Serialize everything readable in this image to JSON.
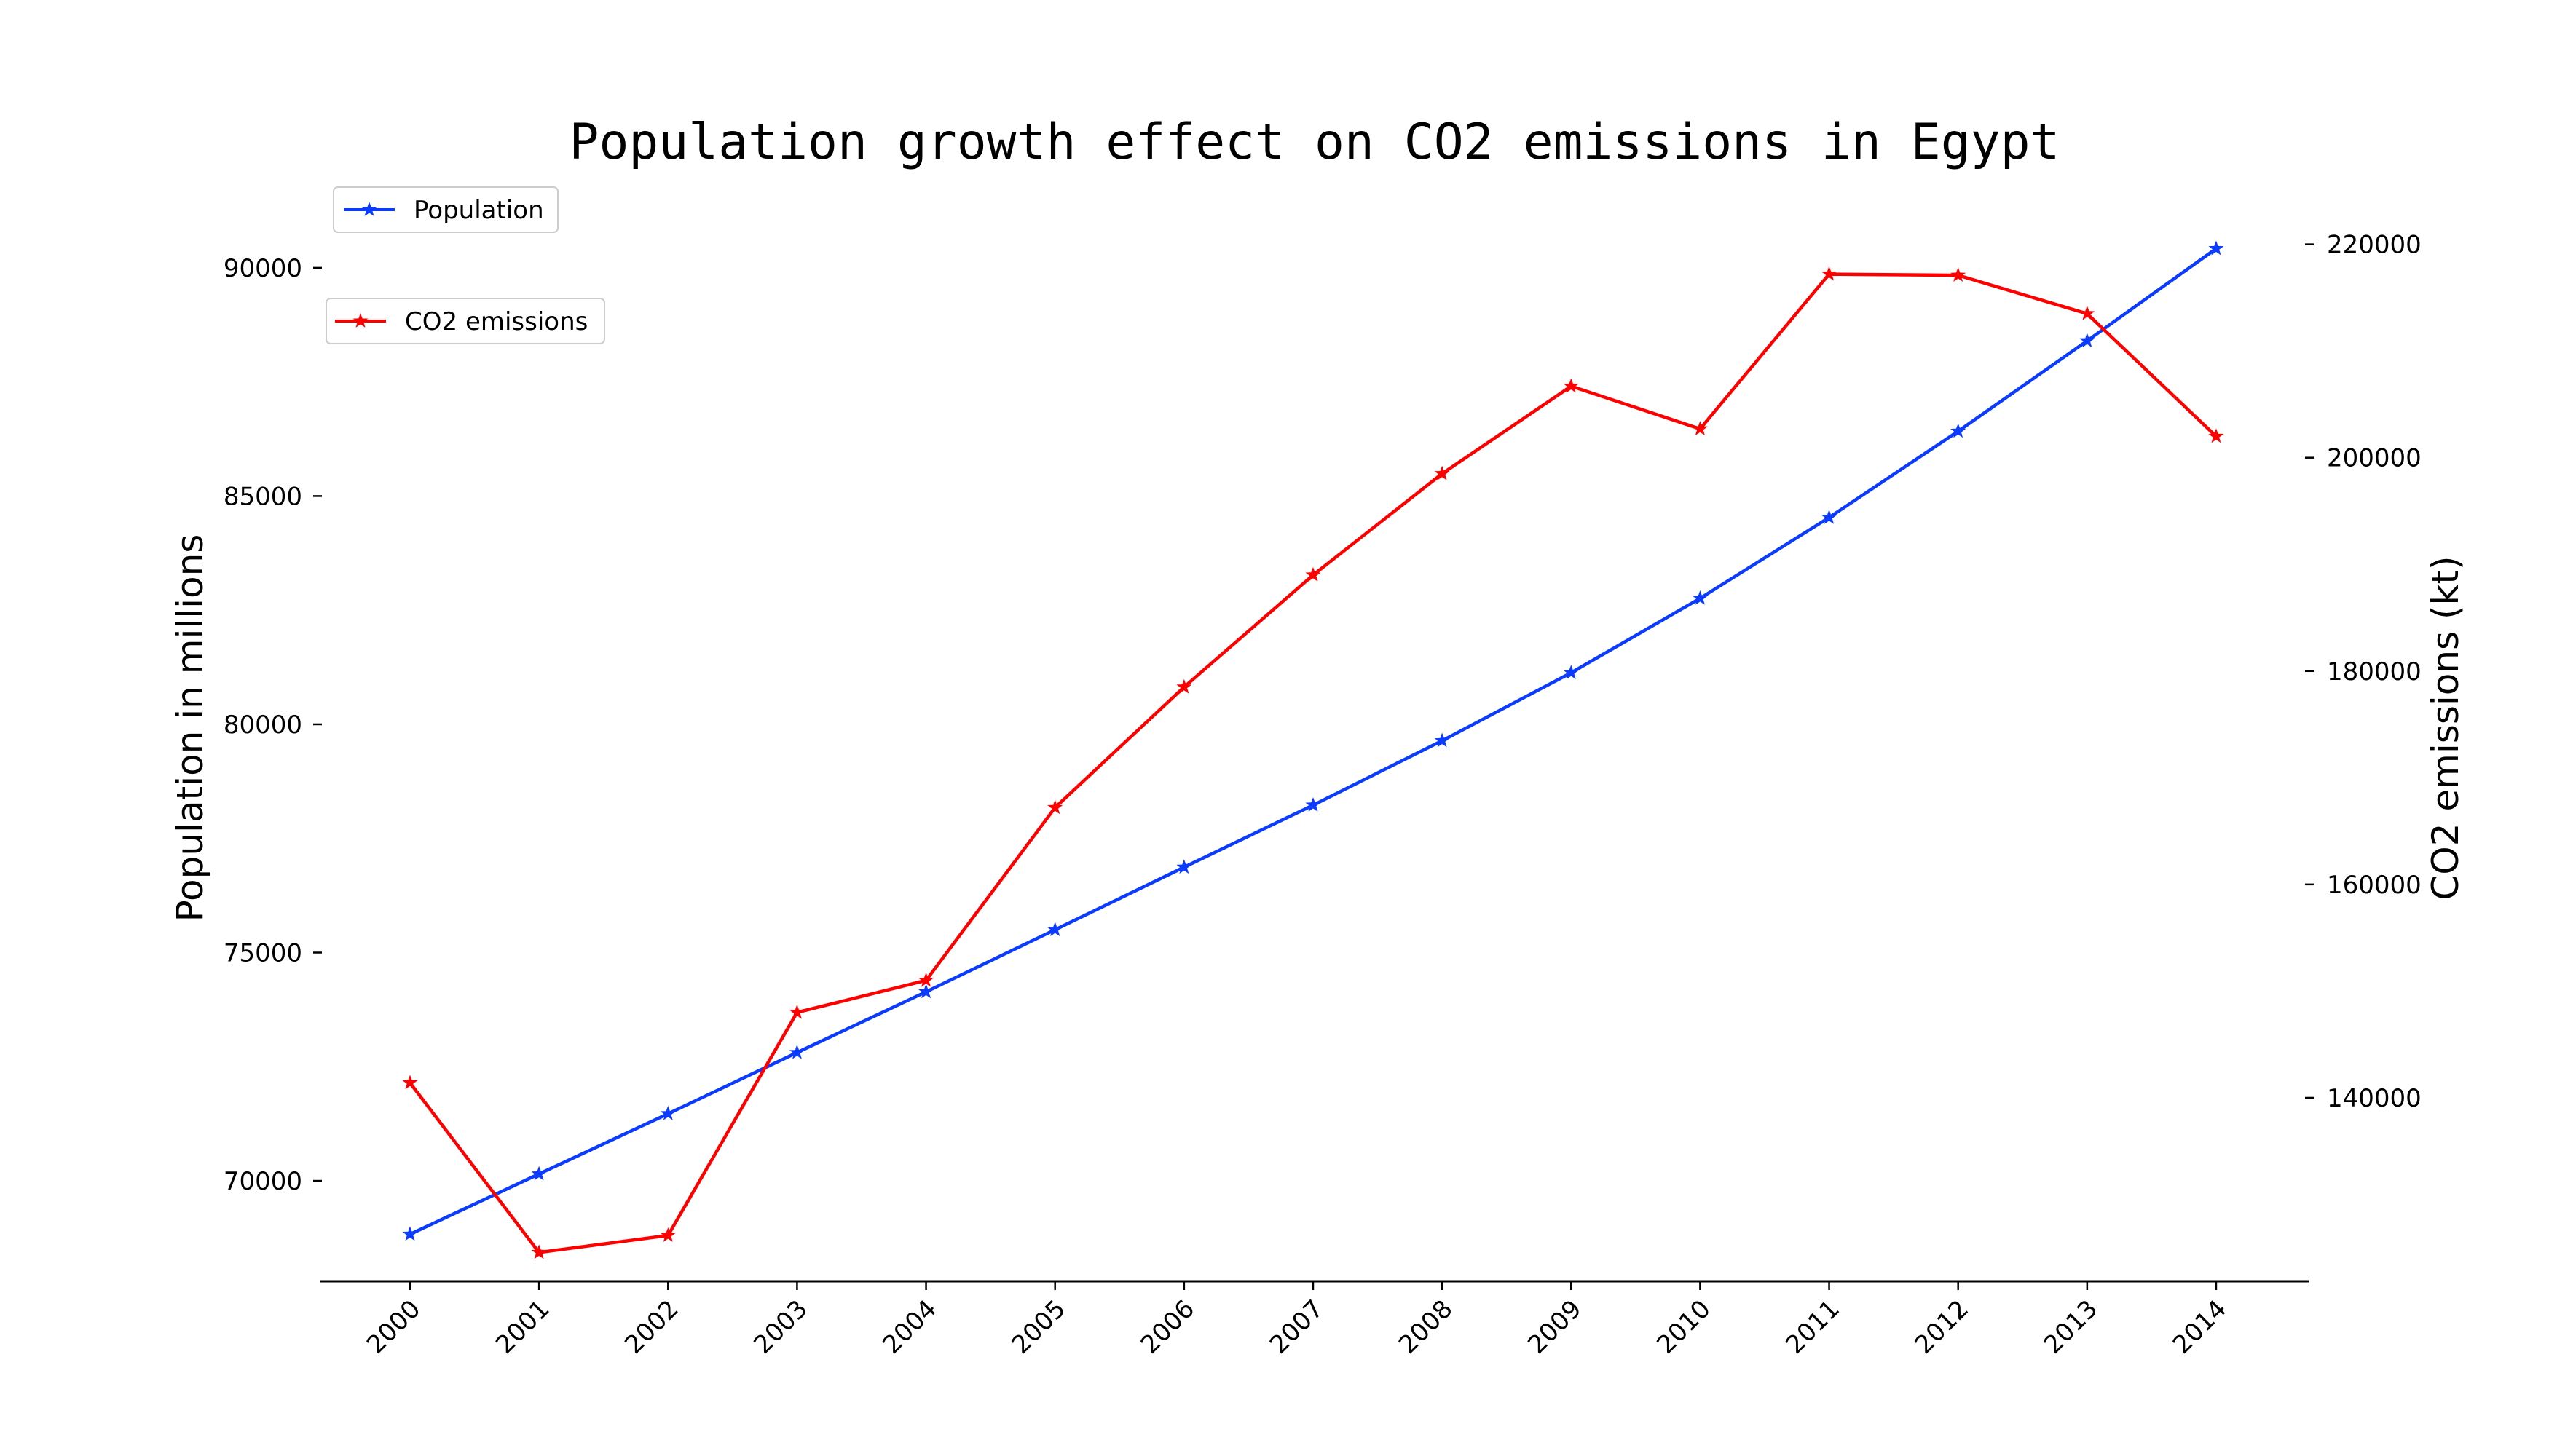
{
  "chart_data": {
    "type": "line",
    "title": "Population growth effect on CO2 emissions in Egypt",
    "x": [
      "2000",
      "2001",
      "2002",
      "2003",
      "2004",
      "2005",
      "2006",
      "2007",
      "2008",
      "2009",
      "2010",
      "2011",
      "2012",
      "2013",
      "2014"
    ],
    "series": [
      {
        "name": "Population",
        "axis": "left",
        "color": "#0b3bff",
        "marker": "star",
        "values": [
          68830,
          70150,
          71470,
          72810,
          74140,
          75500,
          76870,
          78230,
          79640,
          81130,
          82760,
          84530,
          86420,
          88400,
          90420
        ]
      },
      {
        "name": "CO2 emissions",
        "axis": "right",
        "color": "#ff0000",
        "marker": "star",
        "values": [
          141400,
          125500,
          127100,
          148000,
          151000,
          167200,
          178500,
          189000,
          198500,
          206700,
          202700,
          217200,
          217100,
          213500,
          202000
        ]
      }
    ],
    "y_left": {
      "label": "Population in millions",
      "ticks": [
        "70000",
        "75000",
        "80000",
        "85000",
        "90000"
      ],
      "ylim": [
        67800,
        91800
      ]
    },
    "y_right": {
      "label": "CO2 emissions (kt)",
      "ticks": [
        "140000",
        "160000",
        "180000",
        "200000",
        "220000"
      ],
      "ylim": [
        122800,
        225500
      ]
    },
    "grid": false,
    "legend_placement": "upper-left"
  }
}
